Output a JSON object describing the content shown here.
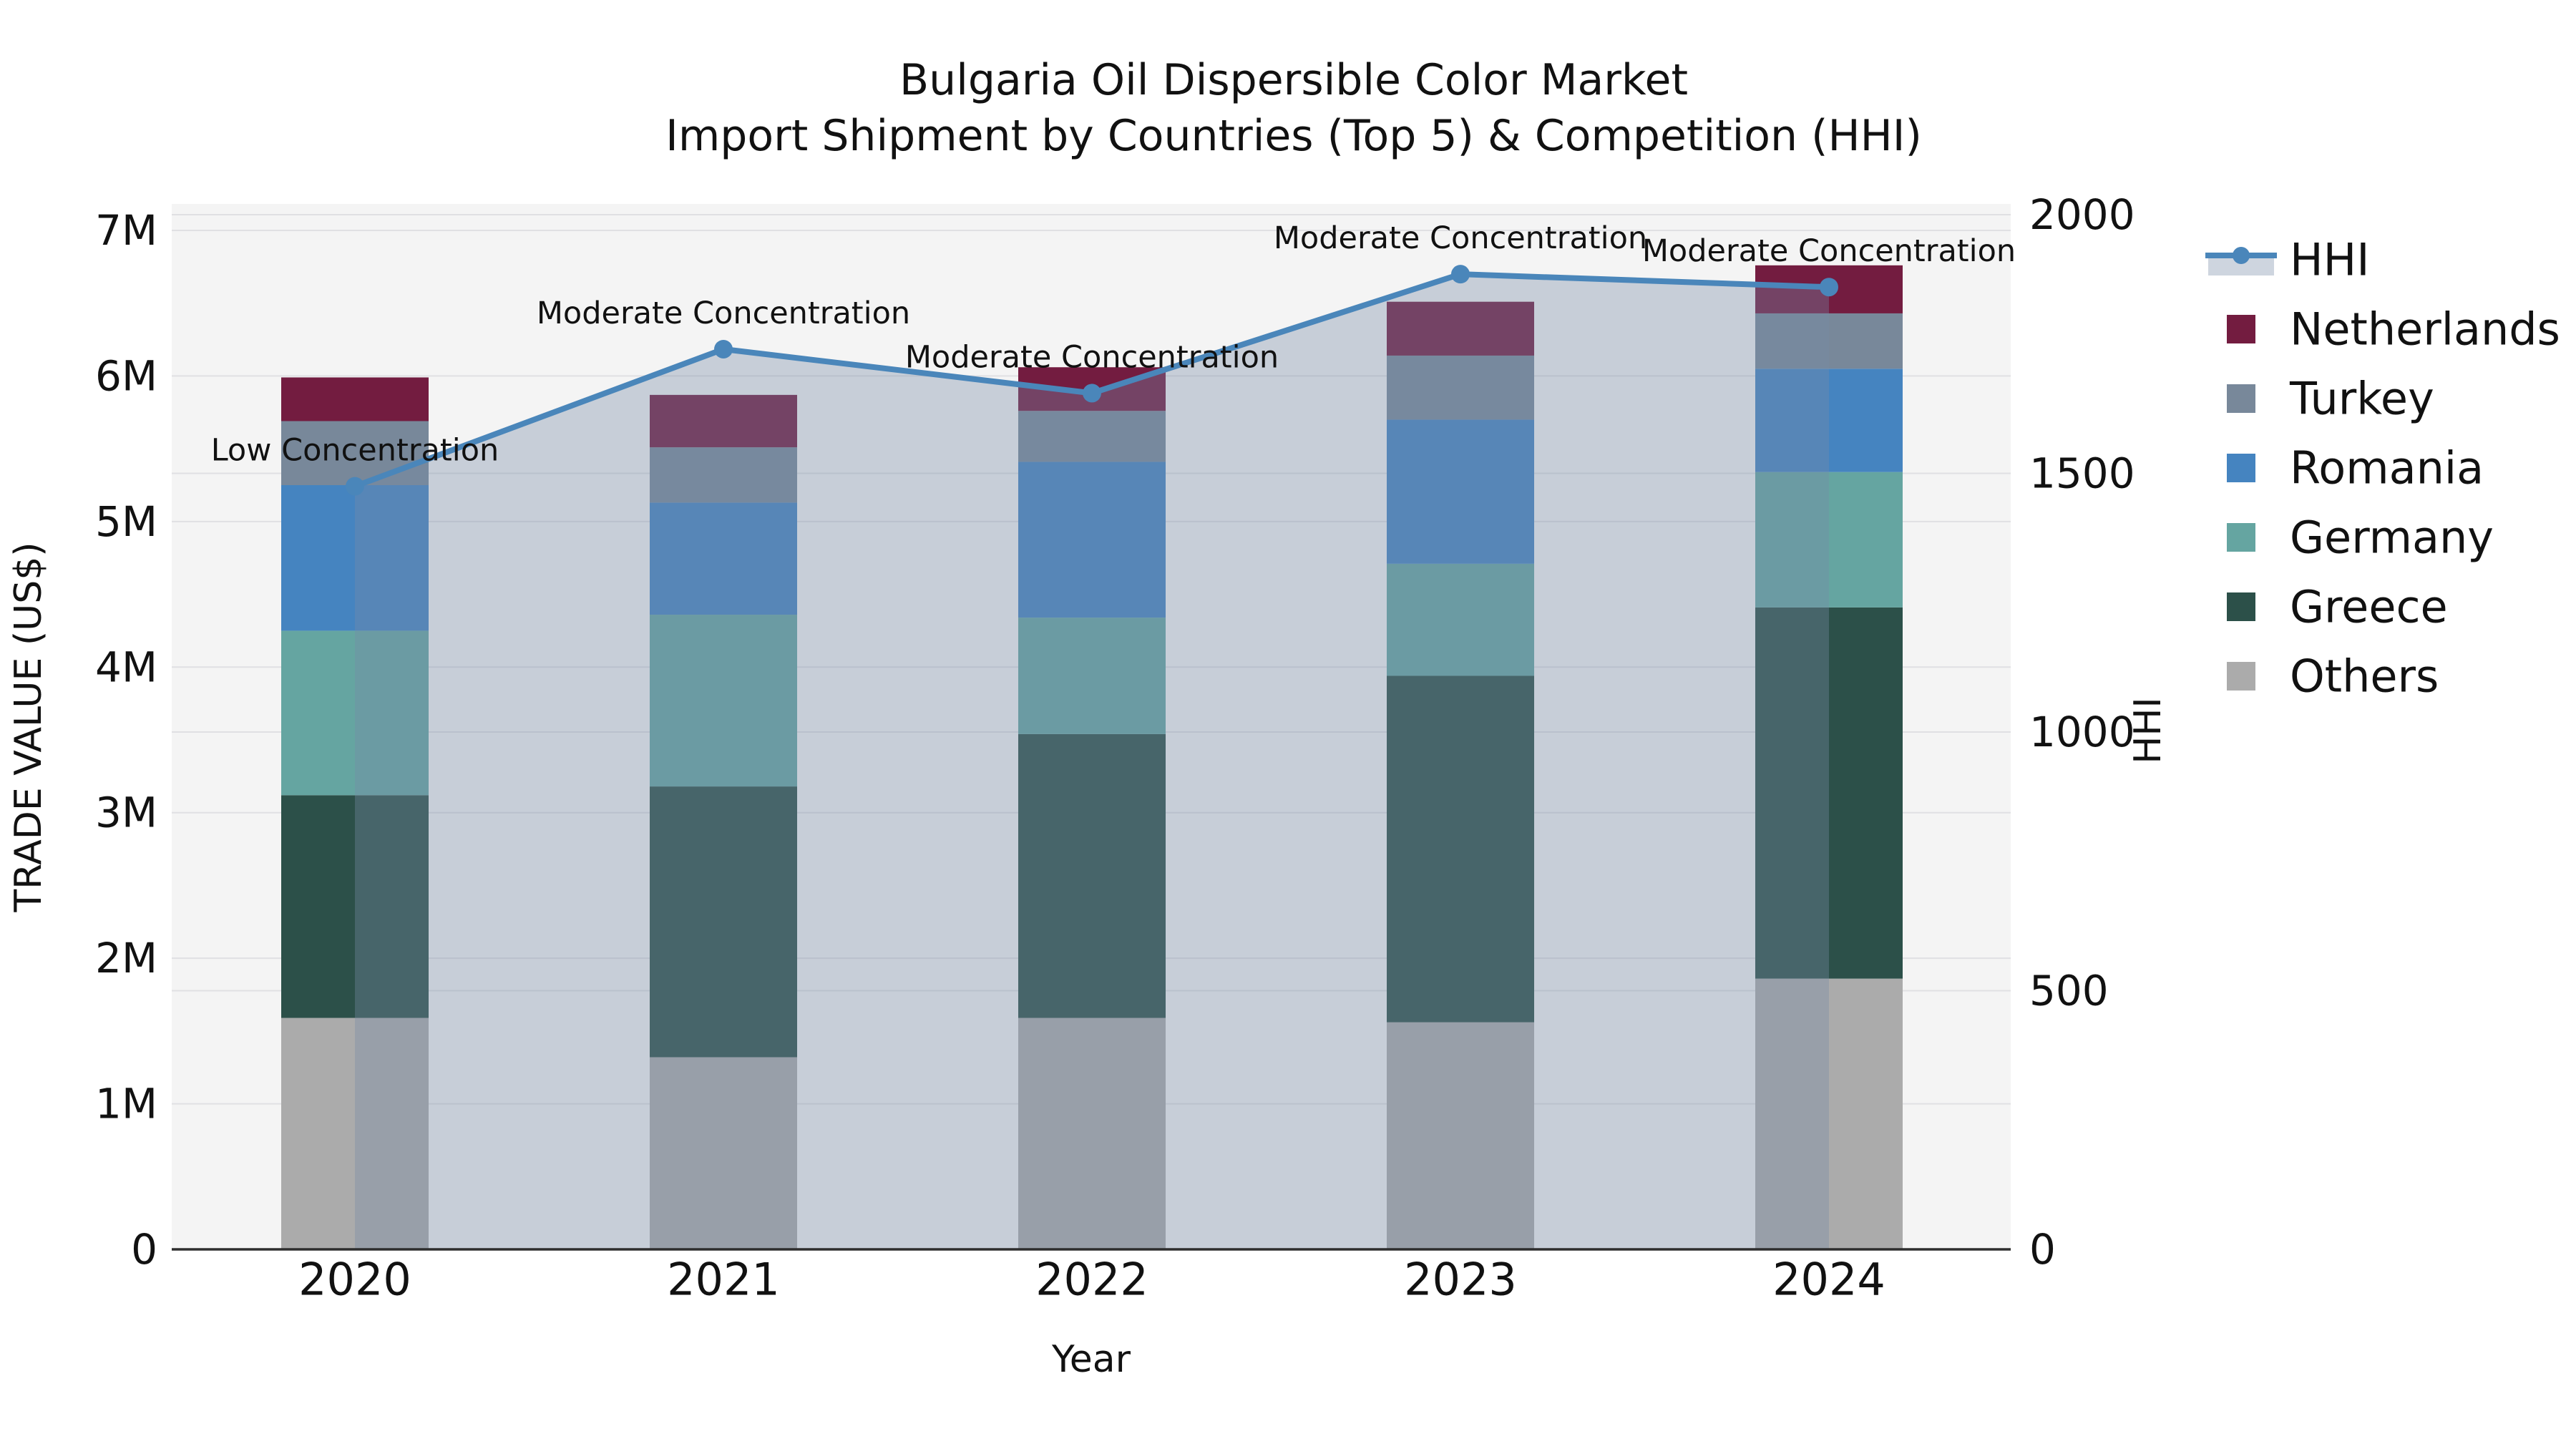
{
  "chart_data": {
    "type": "bar",
    "subtype": "stacked-bar-with-line",
    "title": "Bulgaria Oil Dispersible Color Market",
    "subtitle": "Import Shipment by Countries (Top 5) & Competition (HHI)",
    "xlabel": "Year",
    "ylabel_left": "TRADE VALUE (US$)",
    "ylabel_right": "HHI",
    "categories": [
      "2020",
      "2021",
      "2022",
      "2023",
      "2024"
    ],
    "value_unit": "million US$",
    "stack_order_bottom_to_top": [
      "Others",
      "Greece",
      "Germany",
      "Romania",
      "Turkey",
      "Netherlands"
    ],
    "series": [
      {
        "name": "Others",
        "color": "#ababab",
        "values": [
          1.59,
          1.32,
          1.59,
          1.56,
          1.86
        ]
      },
      {
        "name": "Greece",
        "color": "#2c5049",
        "values": [
          1.53,
          1.86,
          1.95,
          2.38,
          2.55
        ]
      },
      {
        "name": "Germany",
        "color": "#65a5a1",
        "values": [
          1.13,
          1.18,
          0.8,
          0.77,
          0.93
        ]
      },
      {
        "name": "Romania",
        "color": "#4584c0",
        "values": [
          1.0,
          0.77,
          1.07,
          0.99,
          0.71
        ]
      },
      {
        "name": "Turkey",
        "color": "#78889a",
        "values": [
          0.44,
          0.38,
          0.35,
          0.44,
          0.38
        ]
      },
      {
        "name": "Netherlands",
        "color": "#731c40",
        "values": [
          0.3,
          0.36,
          0.3,
          0.37,
          0.33
        ]
      }
    ],
    "bar_totals": [
      5.99,
      5.87,
      6.06,
      6.51,
      6.76
    ],
    "line_series": {
      "name": "HHI",
      "color": "#4a86ba",
      "fill_color": "rgba(120,138,165,0.36)",
      "values": [
        1475,
        1740,
        1655,
        1885,
        1860
      ]
    },
    "annotations": [
      "Low Concentration",
      "Moderate Concentration",
      "Moderate Concentration",
      "Moderate Concentration",
      "Moderate Concentration"
    ],
    "y_left": {
      "ticks": [
        "0",
        "1M",
        "2M",
        "3M",
        "4M",
        "5M",
        "6M",
        "7M"
      ],
      "min": 0,
      "max": 7
    },
    "y_right": {
      "ticks": [
        "0",
        "500",
        "1000",
        "1500",
        "2000"
      ],
      "min": 0,
      "max": 2000
    },
    "grid": true,
    "legend_position": "right",
    "legend": [
      {
        "label": "HHI",
        "type": "line",
        "color": "#4a86ba"
      },
      {
        "label": "Netherlands",
        "type": "patch",
        "color": "#731c40"
      },
      {
        "label": "Turkey",
        "type": "patch",
        "color": "#78889a"
      },
      {
        "label": "Romania",
        "type": "patch",
        "color": "#4584c0"
      },
      {
        "label": "Germany",
        "type": "patch",
        "color": "#65a5a1"
      },
      {
        "label": "Greece",
        "type": "patch",
        "color": "#2c5049"
      },
      {
        "label": "Others",
        "type": "patch",
        "color": "#ababab"
      }
    ],
    "plot_background": "#f4f4f4",
    "gridline_color": "#e0e0e3",
    "spine_color": "#2e2e2e"
  }
}
